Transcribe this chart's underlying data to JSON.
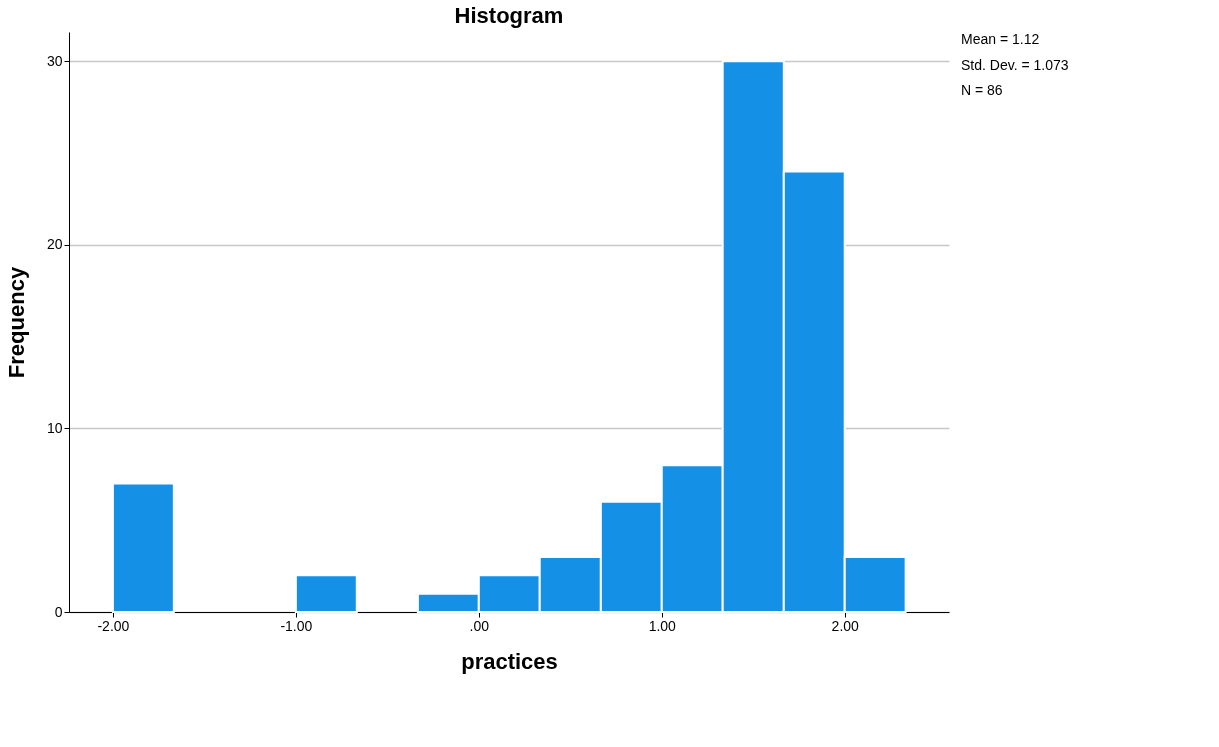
{
  "chart_data": {
    "type": "histogram",
    "title": "Histogram",
    "xlabel": "practices",
    "ylabel": "Frequency",
    "bins": [
      -2.0,
      -1.667,
      -1.333,
      -1.0,
      -0.667,
      -0.333,
      0.0,
      0.333,
      0.667,
      1.0,
      1.333,
      1.667,
      2.0,
      2.333
    ],
    "values": [
      7,
      0,
      0,
      2,
      0,
      1,
      2,
      3,
      6,
      8,
      30,
      24,
      3
    ],
    "color": "#1490e6",
    "xlim": [
      -2.24,
      2.57
    ],
    "ylim": [
      0,
      31.6
    ],
    "xticks": [
      {
        "value": -2,
        "label": "-2.00"
      },
      {
        "value": -1,
        "label": "-1.00"
      },
      {
        "value": 0,
        "label": ".00"
      },
      {
        "value": 1,
        "label": "1.00"
      },
      {
        "value": 2,
        "label": "2.00"
      }
    ],
    "yticks": [
      0,
      10,
      20,
      30
    ],
    "grid": "y",
    "annotations": [
      "Mean = 1.12",
      "Std. Dev. = 1.073",
      "N = 86"
    ]
  }
}
